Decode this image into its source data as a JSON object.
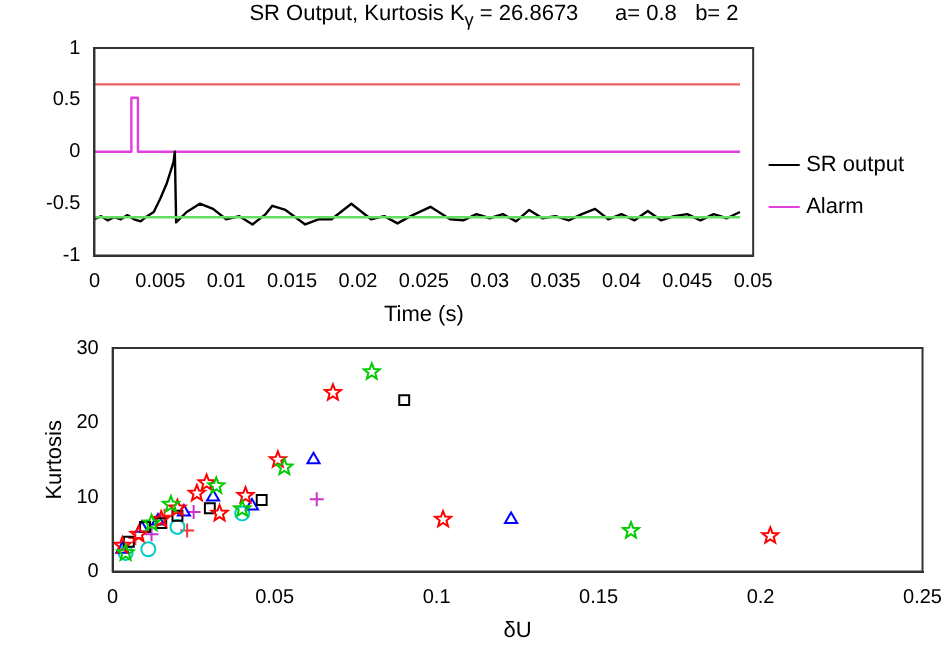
{
  "chart_data": [
    {
      "type": "line",
      "title": "SR Output, Kurtosis K$_{γ}$ = 26.8673      a= 0.8   b= 2",
      "xlabel": "Time (s)",
      "xlim": [
        0,
        0.05
      ],
      "xticks": [
        0,
        0.005,
        0.01,
        0.015,
        0.02,
        0.025,
        0.03,
        0.035,
        0.04,
        0.045,
        0.05
      ],
      "ylim": [
        -1,
        1
      ],
      "yticks": [
        -1,
        -0.5,
        0,
        0.5,
        1
      ],
      "grid": false,
      "legend": "right",
      "marker": "none",
      "line_style": "solid",
      "series": [
        {
          "color": "#f06060",
          "x": [
            0,
            0.049
          ],
          "values": [
            0.65,
            0.65
          ]
        },
        {
          "color": "#60e060",
          "x": [
            0,
            0.049
          ],
          "values": [
            -0.63,
            -0.63
          ]
        },
        {
          "name": "SR output",
          "color": "#000000",
          "x": [
            0,
            0.0005,
            0.001,
            0.0015,
            0.002,
            0.0025,
            0.003,
            0.0035,
            0.004,
            0.0045,
            0.005,
            0.0055,
            0.006,
            0.0061,
            0.0062,
            0.007,
            0.008,
            0.009,
            0.01,
            0.011,
            0.012,
            0.013,
            0.0135,
            0.0145,
            0.016,
            0.017,
            0.018,
            0.0195,
            0.021,
            0.022,
            0.023,
            0.024,
            0.0255,
            0.027,
            0.028,
            0.029,
            0.03,
            0.031,
            0.032,
            0.033,
            0.034,
            0.035,
            0.036,
            0.037,
            0.038,
            0.039,
            0.04,
            0.041,
            0.042,
            0.043,
            0.044,
            0.045,
            0.046,
            0.047,
            0.048,
            0.049
          ],
          "values": [
            -0.65,
            -0.62,
            -0.66,
            -0.63,
            -0.65,
            -0.61,
            -0.65,
            -0.67,
            -0.62,
            -0.58,
            -0.45,
            -0.3,
            -0.1,
            0,
            -0.68,
            -0.58,
            -0.5,
            -0.55,
            -0.65,
            -0.62,
            -0.7,
            -0.6,
            -0.52,
            -0.56,
            -0.7,
            -0.65,
            -0.65,
            -0.5,
            -0.65,
            -0.62,
            -0.69,
            -0.62,
            -0.53,
            -0.65,
            -0.66,
            -0.6,
            -0.64,
            -0.6,
            -0.67,
            -0.56,
            -0.64,
            -0.62,
            -0.66,
            -0.6,
            -0.55,
            -0.65,
            -0.6,
            -0.66,
            -0.57,
            -0.66,
            -0.62,
            -0.6,
            -0.66,
            -0.6,
            -0.64,
            -0.58
          ]
        },
        {
          "name": "Alarm",
          "color": "#e040e0",
          "x": [
            0,
            0.0028,
            0.0028,
            0.0033,
            0.0033,
            0.049
          ],
          "values": [
            0,
            0,
            0.52,
            0.52,
            0,
            0
          ]
        }
      ]
    },
    {
      "type": "scatter",
      "xlabel": "δU",
      "ylabel": "Kurtosis",
      "xlim": [
        0,
        0.25
      ],
      "xticks": [
        0,
        0.05,
        0.1,
        0.15,
        0.2,
        0.25
      ],
      "ylim": [
        0,
        30
      ],
      "yticks": [
        0,
        10,
        20,
        30
      ],
      "grid": false,
      "legend": false,
      "series": [
        {
          "color": "#ff0000",
          "marker": "star",
          "x": [
            0.068,
            0.051,
            0.041,
            0.102,
            0.029,
            0.203,
            0.026,
            0.033,
            0.02,
            0.015,
            0.008,
            0.003
          ],
          "values": [
            24,
            15,
            10.2,
            7,
            11.9,
            4.8,
            10.5,
            7.8,
            8.5,
            7,
            5,
            3.5
          ]
        },
        {
          "color": "#00cc00",
          "marker": "star",
          "x": [
            0.08,
            0.053,
            0.16,
            0.04,
            0.032,
            0.018,
            0.012,
            0.004
          ],
          "values": [
            26.8,
            14,
            5.5,
            8.4,
            11.5,
            9,
            6.5,
            2.5
          ]
        },
        {
          "color": "#000000",
          "marker": "square",
          "x": [
            0.09,
            0.046,
            0.005,
            0.01,
            0.02,
            0.015,
            0.03
          ],
          "values": [
            23,
            9.6,
            4,
            6,
            7.5,
            6.5,
            8.5
          ]
        },
        {
          "color": "#0000ff",
          "marker": "triangle",
          "x": [
            0.062,
            0.123,
            0.031,
            0.043,
            0.009,
            0.014,
            0.022,
            0.003
          ],
          "values": [
            15,
            7,
            10,
            8.8,
            5.8,
            6.8,
            8,
            3
          ]
        },
        {
          "color": "#cc33cc",
          "marker": "cross",
          "x": [
            0.063,
            0.025,
            0.012
          ],
          "values": [
            9.7,
            8,
            5
          ]
        },
        {
          "color": "#00cccc",
          "marker": "circle",
          "x": [
            0.04,
            0.011,
            0.02,
            0.004
          ],
          "values": [
            7.8,
            3,
            6,
            2.5
          ]
        },
        {
          "color": "#ff3333",
          "marker": "cross",
          "x": [
            0.023,
            0.016,
            0.007
          ],
          "values": [
            5.5,
            7.5,
            4.5
          ]
        }
      ]
    }
  ]
}
